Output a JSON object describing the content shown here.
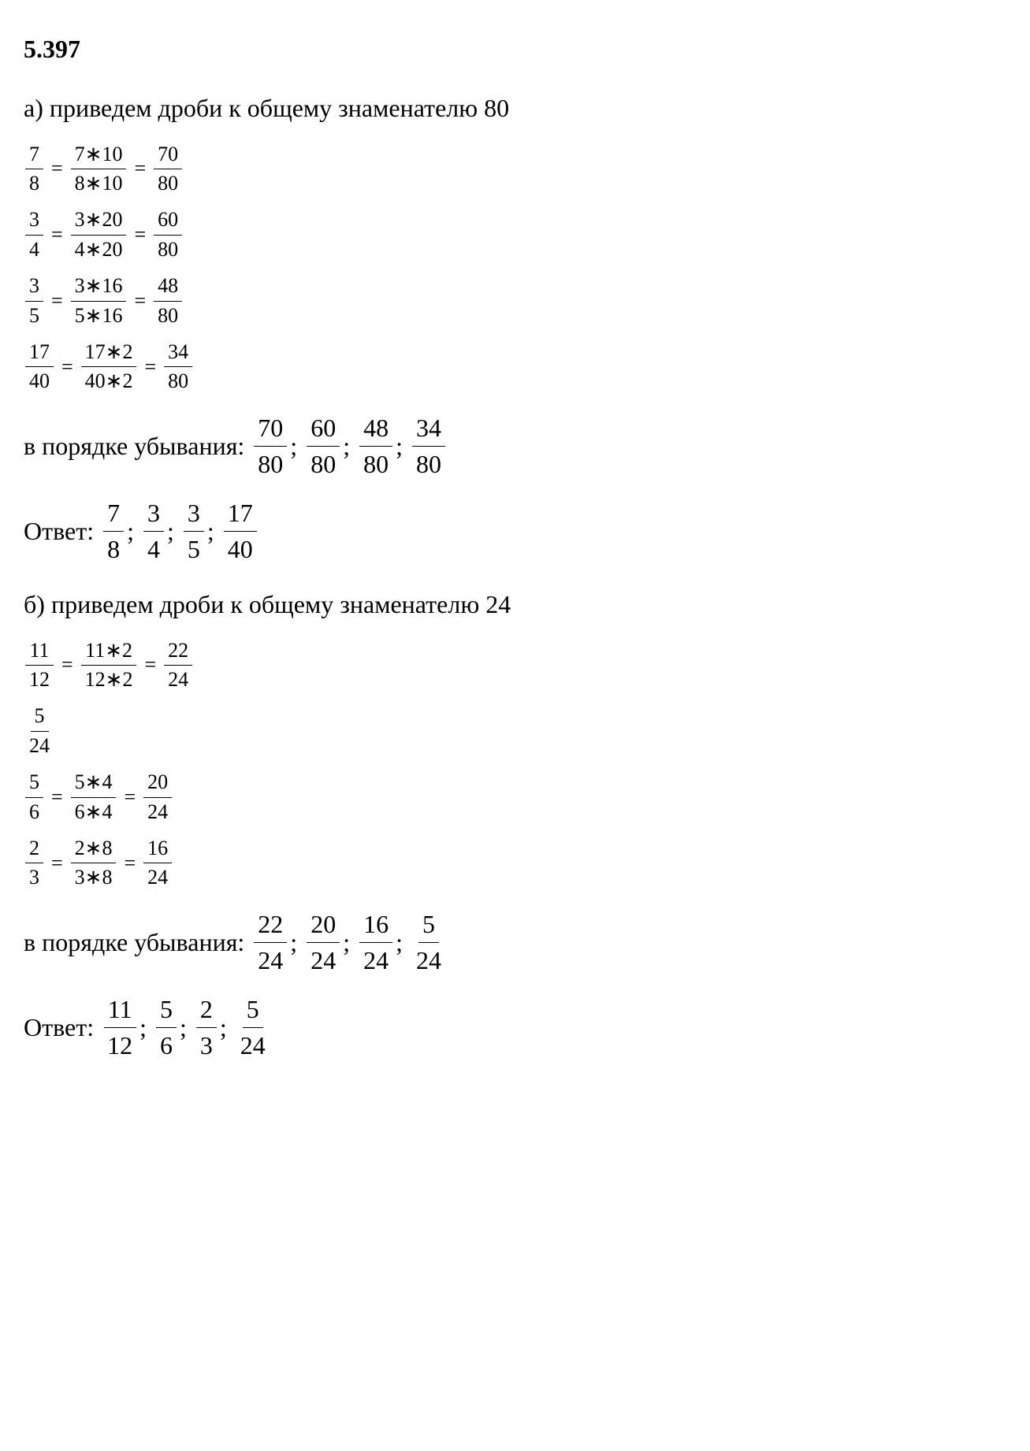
{
  "problem_number": "5.397",
  "part_a": {
    "label": "а) приведем дроби к общему знаменателю 80",
    "equations": [
      {
        "f1n": "7",
        "f1d": "8",
        "f2n": "7∗10",
        "f2d": "8∗10",
        "f3n": "70",
        "f3d": "80"
      },
      {
        "f1n": "3",
        "f1d": "4",
        "f2n": "3∗20",
        "f2d": "4∗20",
        "f3n": "60",
        "f3d": "80"
      },
      {
        "f1n": "3",
        "f1d": "5",
        "f2n": "3∗16",
        "f2d": "5∗16",
        "f3n": "48",
        "f3d": "80"
      },
      {
        "f1n": "17",
        "f1d": "40",
        "f2n": "17∗2",
        "f2d": "40∗2",
        "f3n": "34",
        "f3d": "80"
      }
    ],
    "descending_label": "в порядке убывания:",
    "descending": [
      {
        "n": "70",
        "d": "80"
      },
      {
        "n": "60",
        "d": "80"
      },
      {
        "n": "48",
        "d": "80"
      },
      {
        "n": "34",
        "d": "80"
      }
    ],
    "answer_label": "Ответ:",
    "answer": [
      {
        "n": "7",
        "d": "8"
      },
      {
        "n": "3",
        "d": "4"
      },
      {
        "n": "3",
        "d": "5"
      },
      {
        "n": "17",
        "d": "40"
      }
    ]
  },
  "part_b": {
    "label": "б) приведем дроби к общему знаменателю 24",
    "equations": [
      {
        "f1n": "11",
        "f1d": "12",
        "f2n": "11∗2",
        "f2d": "12∗2",
        "f3n": "22",
        "f3d": "24"
      },
      {
        "f1n": "5",
        "f1d": "24"
      },
      {
        "f1n": "5",
        "f1d": "6",
        "f2n": "5∗4",
        "f2d": "6∗4",
        "f3n": "20",
        "f3d": "24"
      },
      {
        "f1n": "2",
        "f1d": "3",
        "f2n": "2∗8",
        "f2d": "3∗8",
        "f3n": "16",
        "f3d": "24"
      }
    ],
    "descending_label": "в порядке убывания:",
    "descending": [
      {
        "n": "22",
        "d": "24"
      },
      {
        "n": "20",
        "d": "24"
      },
      {
        "n": "16",
        "d": "24"
      },
      {
        "n": "5",
        "d": "24"
      }
    ],
    "answer_label": "Ответ:",
    "answer": [
      {
        "n": "11",
        "d": "12"
      },
      {
        "n": "5",
        "d": "6"
      },
      {
        "n": "2",
        "d": "3"
      },
      {
        "n": "5",
        "d": "24"
      }
    ]
  },
  "eq_symbol": "=",
  "sep_symbol": ";"
}
